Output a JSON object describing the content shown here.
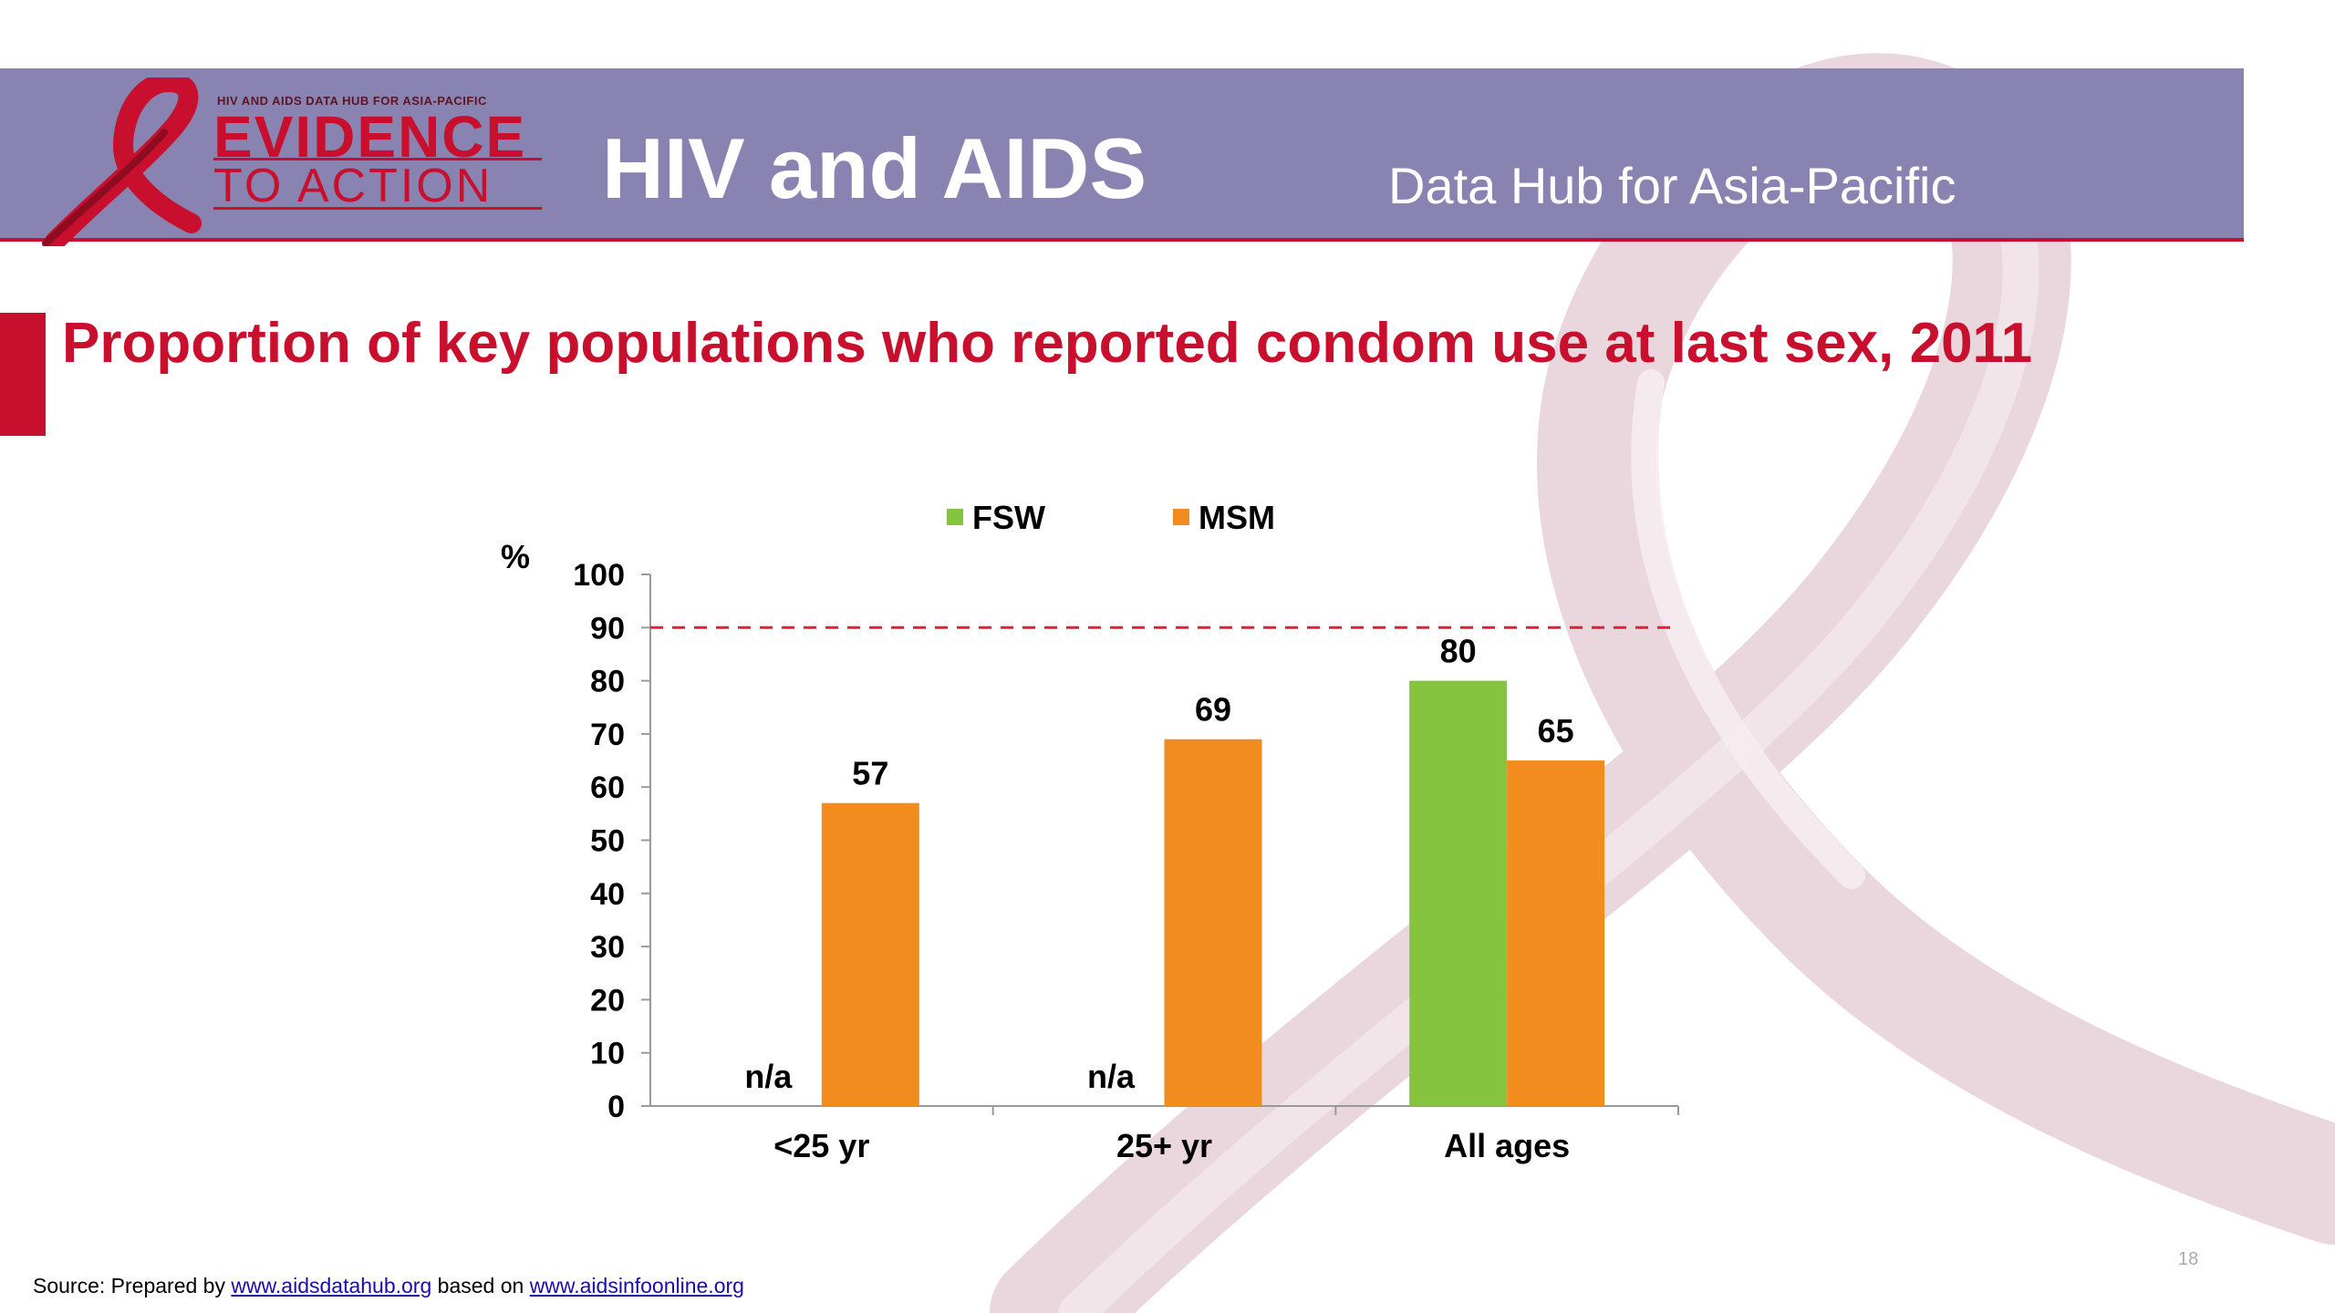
{
  "header": {
    "logo_small_text": "HIV AND AIDS DATA HUB FOR ASIA-PACIFIC",
    "logo_line1": "EVIDENCE",
    "logo_line2": "TO ACTION",
    "title": "HIV and AIDS",
    "subtitle": "Data Hub for Asia-Pacific"
  },
  "slide": {
    "title": "Proportion of key populations who reported condom use at last sex, 2011",
    "page_number": "18"
  },
  "source": {
    "prefix": "Source: Prepared by ",
    "link1": "www.aidsdatahub.org",
    "middle": " based on ",
    "link2": "www.aidsinfoonline.org"
  },
  "colors": {
    "brand_red": "#c8102e",
    "header_band": "#8883b0",
    "fsw": "#86c440",
    "msm": "#f28c1e",
    "target_line": "#e0203a"
  },
  "chart_data": {
    "type": "bar",
    "categories": [
      "<25 yr",
      "25+ yr",
      "All ages"
    ],
    "series": [
      {
        "name": "FSW",
        "values": [
          null,
          null,
          80
        ],
        "labels": [
          "n/a",
          "n/a",
          "80"
        ]
      },
      {
        "name": "MSM",
        "values": [
          57,
          69,
          65
        ],
        "labels": [
          "57",
          "69",
          "65"
        ]
      }
    ],
    "ylabel": "%",
    "ylim": [
      0,
      100
    ],
    "yticks": [
      0,
      10,
      20,
      30,
      40,
      50,
      60,
      70,
      80,
      90,
      100
    ],
    "reference_line": 90,
    "legend_position": "top",
    "grid": false
  }
}
